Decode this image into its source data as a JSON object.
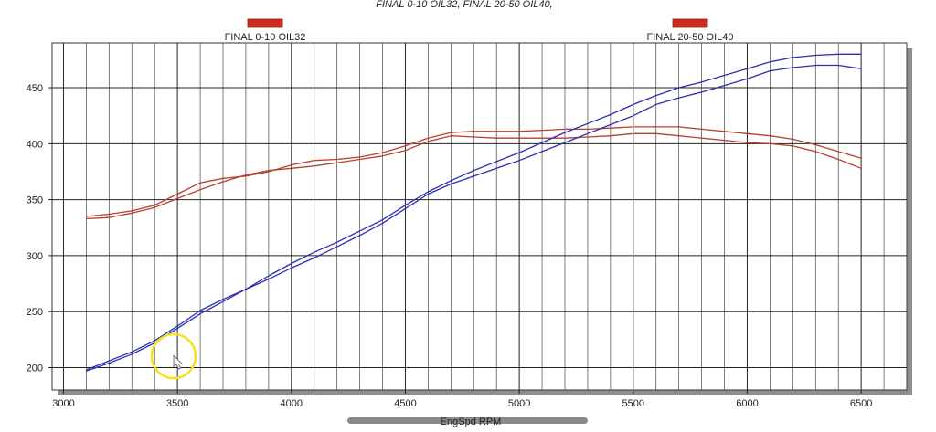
{
  "chart_data": {
    "type": "line",
    "title": "FINAL 0-10 OIL32, FINAL 20-50 OIL40,",
    "xlabel": "EngSpd RPM",
    "ylabel": "",
    "xlim": [
      2950,
      6700
    ],
    "ylim": [
      180,
      490
    ],
    "xticks": [
      3000,
      3500,
      4000,
      4500,
      5000,
      5500,
      6000,
      6500
    ],
    "yticks": [
      200,
      250,
      300,
      350,
      400,
      450
    ],
    "grid": true,
    "legend_position": "top",
    "legend": [
      {
        "name": "FINAL 0-10 OIL32",
        "color": "#cc2b1f"
      },
      {
        "name": "FINAL 20-50 OIL40",
        "color": "#cc2b1f"
      }
    ],
    "series": [
      {
        "color": "#b5422f",
        "x": [
          3100,
          3200,
          3300,
          3400,
          3500,
          3600,
          3700,
          3800,
          3900,
          4000,
          4100,
          4200,
          4300,
          4400,
          4500,
          4600,
          4700,
          4800,
          4900,
          5000,
          5100,
          5200,
          5300,
          5400,
          5500,
          5600,
          5700,
          5800,
          5900,
          6000,
          6100,
          6200,
          6300,
          6400,
          6500
        ],
        "values": [
          335,
          337,
          340,
          345,
          355,
          365,
          369,
          371,
          375,
          381,
          385,
          386,
          388,
          392,
          398,
          405,
          410,
          411,
          411,
          411,
          412,
          413,
          413,
          414,
          415,
          415,
          415,
          413,
          411,
          409,
          407,
          404,
          399,
          393,
          387
        ]
      },
      {
        "color": "#b5422f",
        "x": [
          3100,
          3200,
          3300,
          3400,
          3500,
          3600,
          3700,
          3800,
          3900,
          4000,
          4100,
          4200,
          4300,
          4400,
          4500,
          4600,
          4700,
          4800,
          4900,
          5000,
          5100,
          5200,
          5300,
          5400,
          5500,
          5600,
          5700,
          5800,
          5900,
          6000,
          6100,
          6200,
          6300,
          6400,
          6500
        ],
        "values": [
          333,
          334,
          338,
          343,
          351,
          359,
          366,
          372,
          376,
          378,
          380,
          383,
          386,
          389,
          394,
          402,
          407,
          406,
          405,
          405,
          405,
          405,
          406,
          407,
          409,
          409,
          407,
          405,
          403,
          401,
          400,
          398,
          393,
          386,
          378
        ]
      },
      {
        "color": "#2b2fb0",
        "x": [
          3100,
          3200,
          3300,
          3400,
          3500,
          3600,
          3700,
          3800,
          3900,
          4000,
          4100,
          4200,
          4300,
          4400,
          4500,
          4600,
          4700,
          4800,
          4900,
          5000,
          5100,
          5200,
          5300,
          5400,
          5500,
          5600,
          5700,
          5800,
          5900,
          6000,
          6100,
          6200,
          6300,
          6400,
          6500
        ],
        "values": [
          197,
          204,
          212,
          222,
          235,
          248,
          259,
          270,
          282,
          293,
          303,
          312,
          322,
          332,
          345,
          357,
          367,
          376,
          384,
          392,
          401,
          410,
          418,
          426,
          435,
          443,
          450,
          455,
          461,
          467,
          473,
          477,
          479,
          480,
          480
        ]
      },
      {
        "color": "#2b2fb0",
        "x": [
          3100,
          3200,
          3300,
          3400,
          3500,
          3600,
          3700,
          3800,
          3900,
          4000,
          4100,
          4200,
          4300,
          4400,
          4500,
          4600,
          4700,
          4800,
          4900,
          5000,
          5100,
          5200,
          5300,
          5400,
          5500,
          5600,
          5700,
          5800,
          5900,
          6000,
          6100,
          6200,
          6300,
          6400,
          6500
        ],
        "values": [
          198,
          206,
          214,
          224,
          237,
          251,
          261,
          270,
          279,
          289,
          298,
          308,
          318,
          329,
          342,
          355,
          364,
          371,
          378,
          385,
          393,
          401,
          409,
          417,
          425,
          435,
          441,
          446,
          452,
          458,
          465,
          468,
          470,
          470,
          467
        ]
      }
    ]
  }
}
